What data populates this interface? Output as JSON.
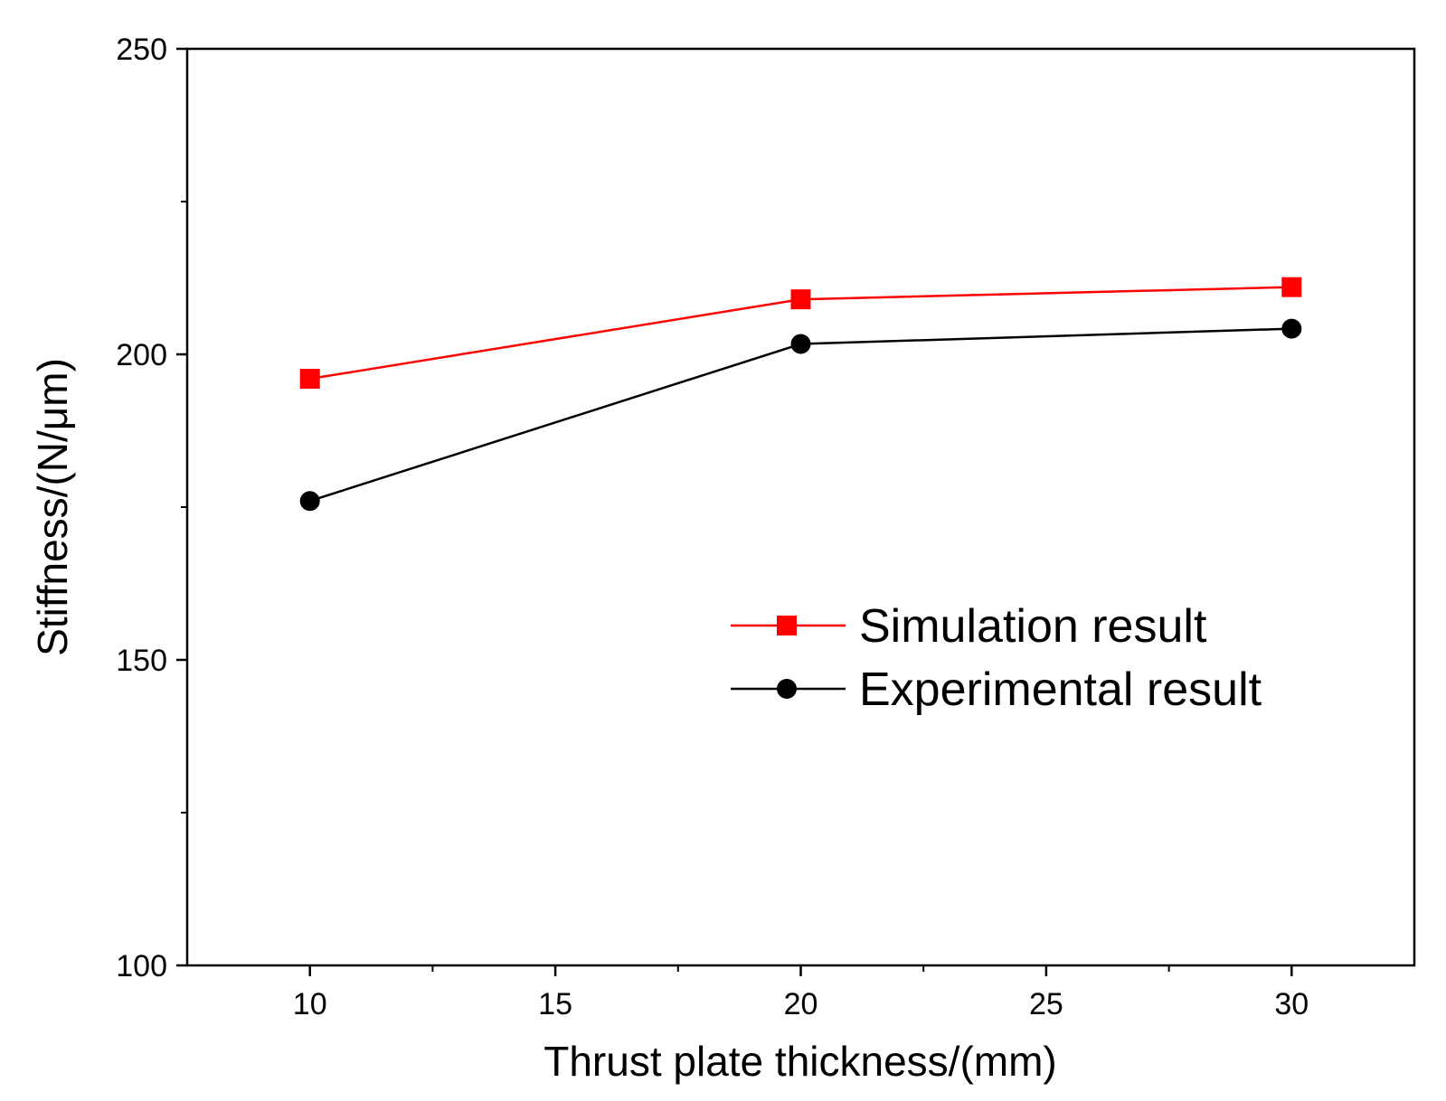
{
  "chart_data": {
    "type": "line",
    "title": "",
    "xlabel": "Thrust plate thickness/(mm)",
    "ylabel": "Stiffness/(N/μm)",
    "xlim": [
      7.5,
      32.5
    ],
    "ylim": [
      100,
      250
    ],
    "x_ticks": [
      10,
      15,
      20,
      25,
      30
    ],
    "x_tick_labels": [
      "10",
      "15",
      "20",
      "25",
      "30"
    ],
    "y_ticks": [
      100,
      150,
      200,
      250
    ],
    "y_tick_labels": [
      "100",
      "150",
      "200",
      "250"
    ],
    "grid": false,
    "legend_position": "center-right",
    "series": [
      {
        "name": "Simulation result",
        "color": "#ff0000",
        "marker": "square",
        "x": [
          10,
          20,
          30
        ],
        "values": [
          196,
          209,
          211
        ]
      },
      {
        "name": "Experimental result",
        "color": "#000000",
        "marker": "circle",
        "x": [
          10,
          20,
          30
        ],
        "values": [
          176,
          201.7,
          204.2
        ]
      }
    ]
  }
}
